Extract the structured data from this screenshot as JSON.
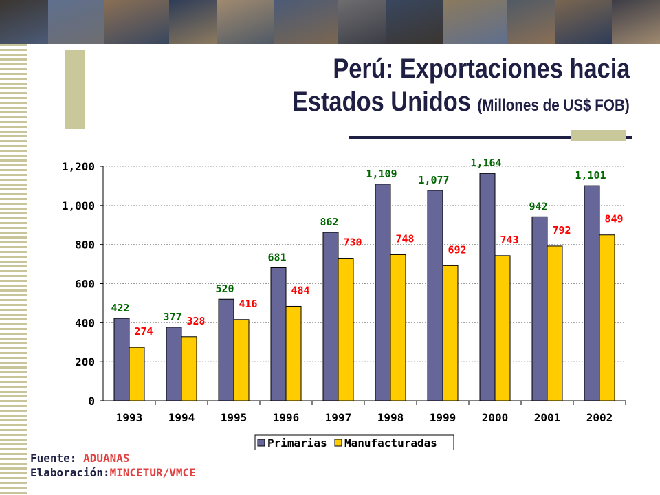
{
  "title": {
    "line1": "Perú: Exportaciones hacia",
    "line2": "Estados Unidos",
    "unit": "(Millones de US$ FOB)"
  },
  "colors": {
    "primarias": "#666699",
    "manufacturadas": "#ffcc00",
    "label_primarias": "#006600",
    "label_manufacturadas": "#ff0000"
  },
  "chart_data": {
    "type": "bar",
    "categories": [
      "1993",
      "1994",
      "1995",
      "1996",
      "1997",
      "1998",
      "1999",
      "2000",
      "2001",
      "2002"
    ],
    "series": [
      {
        "name": "Primarias",
        "values": [
          422,
          377,
          520,
          681,
          862,
          1109,
          1077,
          1164,
          942,
          1101
        ],
        "labels": [
          "422",
          "377",
          "520",
          "681",
          "862",
          "1,109",
          "1,077",
          "1,164",
          "942",
          "1,101"
        ]
      },
      {
        "name": "Manufacturadas",
        "values": [
          274,
          328,
          416,
          484,
          730,
          748,
          692,
          743,
          792,
          849
        ],
        "labels": [
          "274",
          "328",
          "416",
          "484",
          "730",
          "748",
          "692",
          "743",
          "792",
          "849"
        ]
      }
    ],
    "yticks": [
      "0",
      "200",
      "400",
      "600",
      "800",
      "1,000",
      "1,200"
    ],
    "ylim": [
      0,
      1200
    ],
    "grid": true,
    "legend": "bottom"
  },
  "source": {
    "fuente_label": "Fuente: ",
    "fuente_value": "ADUANAS",
    "elab_label": "Elaboración:",
    "elab_value": "MINCETUR/VMCE"
  }
}
